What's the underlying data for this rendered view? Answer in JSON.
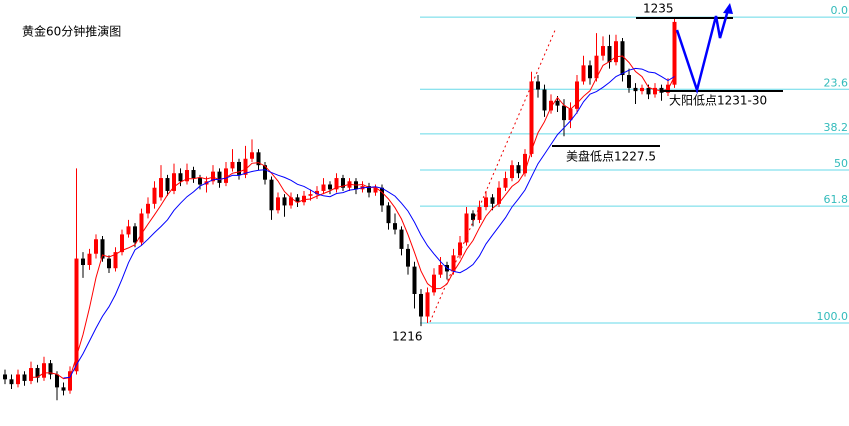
{
  "chart_data": {
    "type": "candlestick",
    "title": "黄金60分钟推演图",
    "up_color": "#ff0000",
    "down_color": "#000000",
    "ylim": [
      1209.6,
      1236.06
    ],
    "ma": [
      {
        "period": 5,
        "color": "#ff0000"
      },
      {
        "period": 10,
        "color": "#0000ff"
      }
    ],
    "fib_range": [
      1235,
      1216
    ],
    "fib_color": "#66d9e8",
    "fib_levels": [
      {
        "value": 0,
        "label": "0.0"
      },
      23.6,
      38.2,
      50.0,
      61.8,
      {
        "value": 100,
        "label": "100.0"
      }
    ],
    "annotations": {
      "high": "1235",
      "low": "1216",
      "us_low": "美盘低点1227.5",
      "yang_low": "大阳低点1231-30"
    },
    "candles": [
      [
        1212.8,
        1213.1,
        1212.2,
        1212.5
      ],
      [
        1212.5,
        1212.8,
        1211.9,
        1212.2
      ],
      [
        1212.2,
        1213.1,
        1212.0,
        1212.8
      ],
      [
        1212.8,
        1213.0,
        1212.1,
        1212.4
      ],
      [
        1212.4,
        1213.6,
        1212.2,
        1213.2
      ],
      [
        1213.2,
        1213.4,
        1212.3,
        1212.6
      ],
      [
        1212.6,
        1213.9,
        1212.4,
        1213.5
      ],
      [
        1213.5,
        1213.7,
        1212.5,
        1212.8
      ],
      [
        1212.8,
        1213.0,
        1211.2,
        1212.0
      ],
      [
        1212.0,
        1212.3,
        1211.5,
        1211.8
      ],
      [
        1211.8,
        1213.3,
        1211.6,
        1213.0
      ],
      [
        1213.0,
        1225.6,
        1212.8,
        1220.0
      ],
      [
        1220.0,
        1220.4,
        1218.8,
        1219.6
      ],
      [
        1219.6,
        1220.6,
        1219.3,
        1220.3
      ],
      [
        1220.3,
        1221.5,
        1220.0,
        1221.2
      ],
      [
        1221.2,
        1221.4,
        1219.8,
        1220.0
      ],
      [
        1220.0,
        1220.2,
        1219.1,
        1219.4
      ],
      [
        1219.4,
        1220.7,
        1219.2,
        1220.4
      ],
      [
        1220.4,
        1221.8,
        1220.2,
        1221.5
      ],
      [
        1221.5,
        1222.4,
        1221.3,
        1222.0
      ],
      [
        1222.0,
        1222.2,
        1220.7,
        1221.0
      ],
      [
        1221.0,
        1223.1,
        1220.8,
        1222.8
      ],
      [
        1222.8,
        1223.8,
        1222.5,
        1223.4
      ],
      [
        1223.4,
        1224.8,
        1223.1,
        1224.4
      ],
      [
        1223.8,
        1225.8,
        1223.6,
        1225.0
      ],
      [
        1225.0,
        1225.2,
        1223.9,
        1224.2
      ],
      [
        1224.2,
        1225.9,
        1224.0,
        1225.3
      ],
      [
        1225.3,
        1225.6,
        1224.5,
        1224.8
      ],
      [
        1224.8,
        1225.9,
        1224.6,
        1225.5
      ],
      [
        1225.5,
        1225.7,
        1224.7,
        1225.0
      ],
      [
        1225.0,
        1225.2,
        1224.3,
        1224.6
      ],
      [
        1224.6,
        1225.1,
        1224.1,
        1224.8
      ],
      [
        1224.8,
        1225.8,
        1224.6,
        1225.4
      ],
      [
        1225.4,
        1225.6,
        1224.4,
        1224.7
      ],
      [
        1224.7,
        1226.0,
        1224.5,
        1225.6
      ],
      [
        1225.6,
        1226.8,
        1225.4,
        1226.0
      ],
      [
        1226.0,
        1226.2,
        1224.9,
        1225.2
      ],
      [
        1225.2,
        1227.0,
        1225.0,
        1226.2
      ],
      [
        1226.2,
        1227.4,
        1226.0,
        1226.6
      ],
      [
        1226.6,
        1226.8,
        1225.5,
        1225.8
      ],
      [
        1225.8,
        1226.0,
        1224.6,
        1224.9
      ],
      [
        1224.9,
        1225.1,
        1222.4,
        1223.0
      ],
      [
        1223.0,
        1224.1,
        1222.8,
        1223.8
      ],
      [
        1223.8,
        1224.0,
        1222.6,
        1223.3
      ],
      [
        1223.3,
        1224.1,
        1223.1,
        1223.8
      ],
      [
        1223.8,
        1224.0,
        1223.2,
        1223.5
      ],
      [
        1223.5,
        1224.2,
        1223.3,
        1223.9
      ],
      [
        1223.9,
        1224.3,
        1223.6,
        1224.0
      ],
      [
        1224.0,
        1224.5,
        1223.7,
        1224.2
      ],
      [
        1224.2,
        1225.0,
        1224.0,
        1224.6
      ],
      [
        1224.6,
        1224.8,
        1224.0,
        1224.3
      ],
      [
        1224.3,
        1225.3,
        1224.1,
        1225.0
      ],
      [
        1225.0,
        1225.2,
        1224.2,
        1224.4
      ],
      [
        1224.4,
        1225.0,
        1224.2,
        1224.8
      ],
      [
        1224.8,
        1225.0,
        1224.0,
        1224.3
      ],
      [
        1224.3,
        1224.8,
        1224.1,
        1224.5
      ],
      [
        1224.5,
        1224.7,
        1223.8,
        1224.1
      ],
      [
        1224.1,
        1224.6,
        1223.9,
        1224.4
      ],
      [
        1224.4,
        1224.6,
        1222.9,
        1223.3
      ],
      [
        1223.3,
        1223.5,
        1221.8,
        1222.2
      ],
      [
        1222.2,
        1222.8,
        1221.5,
        1221.8
      ],
      [
        1221.8,
        1222.0,
        1220.2,
        1220.6
      ],
      [
        1220.6,
        1220.9,
        1219.0,
        1219.5
      ],
      [
        1219.5,
        1219.8,
        1216.9,
        1217.8
      ],
      [
        1217.8,
        1218.1,
        1215.8,
        1216.4
      ],
      [
        1216.4,
        1218.2,
        1216.0,
        1217.9
      ],
      [
        1217.9,
        1219.4,
        1217.7,
        1219.0
      ],
      [
        1219.0,
        1220.1,
        1218.8,
        1219.6
      ],
      [
        1219.6,
        1219.8,
        1218.7,
        1219.2
      ],
      [
        1219.2,
        1220.6,
        1219.0,
        1220.2
      ],
      [
        1220.2,
        1221.4,
        1220.0,
        1221.0
      ],
      [
        1221.0,
        1223.2,
        1220.8,
        1222.8
      ],
      [
        1222.8,
        1223.0,
        1222.0,
        1222.4
      ],
      [
        1222.4,
        1223.6,
        1222.2,
        1223.2
      ],
      [
        1223.2,
        1224.2,
        1223.0,
        1223.8
      ],
      [
        1223.8,
        1224.0,
        1223.0,
        1223.4
      ],
      [
        1223.4,
        1224.8,
        1223.2,
        1224.4
      ],
      [
        1224.4,
        1225.4,
        1224.2,
        1225.0
      ],
      [
        1225.0,
        1226.1,
        1224.8,
        1225.8
      ],
      [
        1225.8,
        1226.0,
        1225.0,
        1225.3
      ],
      [
        1225.3,
        1226.8,
        1225.1,
        1226.5
      ],
      [
        1226.5,
        1231.6,
        1226.3,
        1231.0
      ],
      [
        1231.0,
        1231.4,
        1230.0,
        1230.5
      ],
      [
        1230.5,
        1230.8,
        1228.8,
        1229.2
      ],
      [
        1229.2,
        1230.2,
        1229.0,
        1229.8
      ],
      [
        1229.8,
        1230.1,
        1229.1,
        1229.5
      ],
      [
        1229.5,
        1229.9,
        1227.6,
        1228.6
      ],
      [
        1228.6,
        1229.7,
        1228.1,
        1229.3
      ],
      [
        1229.3,
        1231.4,
        1229.0,
        1231.0
      ],
      [
        1231.0,
        1232.6,
        1230.8,
        1232.0
      ],
      [
        1232.0,
        1232.3,
        1230.8,
        1231.2
      ],
      [
        1231.2,
        1234.0,
        1231.0,
        1232.6
      ],
      [
        1232.6,
        1233.8,
        1232.3,
        1233.2
      ],
      [
        1233.2,
        1233.9,
        1231.8,
        1232.2
      ],
      [
        1232.2,
        1233.9,
        1232.0,
        1233.5
      ],
      [
        1233.5,
        1233.7,
        1231.0,
        1231.4
      ],
      [
        1231.4,
        1231.8,
        1230.3,
        1230.6
      ],
      [
        1230.6,
        1230.9,
        1229.6,
        1230.4
      ],
      [
        1230.4,
        1230.8,
        1230.2,
        1230.6
      ],
      [
        1230.6,
        1230.8,
        1229.9,
        1230.2
      ],
      [
        1230.2,
        1230.9,
        1230.0,
        1230.6
      ],
      [
        1230.6,
        1230.8,
        1229.8,
        1230.3
      ],
      [
        1230.3,
        1231.2,
        1230.1,
        1230.8
      ],
      [
        1230.8,
        1235.0,
        1230.6,
        1234.7
      ]
    ]
  }
}
